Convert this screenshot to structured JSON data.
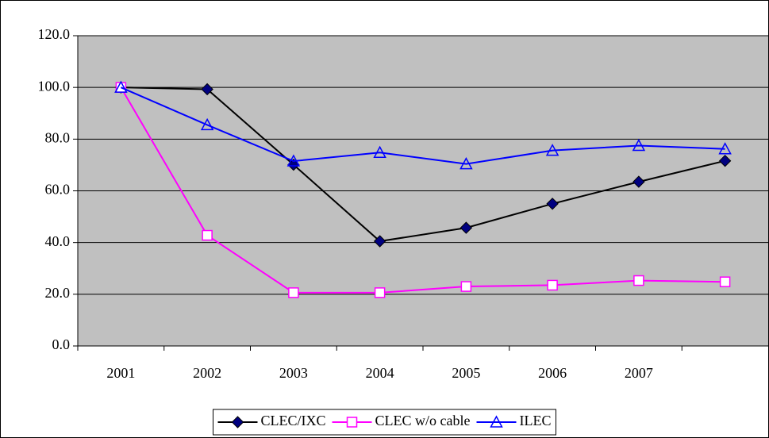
{
  "chart_data": {
    "type": "line",
    "categories": [
      "2001",
      "2002",
      "2003",
      "2004",
      "2005",
      "2006",
      "2007",
      null
    ],
    "series": [
      {
        "name": "CLEC/IXC",
        "color": "#000000",
        "marker": "diamond",
        "values": [
          100,
          99.3,
          70.1,
          40.5,
          45.7,
          55,
          63.5,
          71.6
        ]
      },
      {
        "name": "CLEC w/o cable",
        "color": "#ff00ff",
        "marker": "square",
        "values": [
          100,
          42.8,
          20.6,
          20.6,
          23,
          23.5,
          25.3,
          24.8
        ]
      },
      {
        "name": "ILEC",
        "color": "#0000ff",
        "marker": "triangle",
        "values": [
          100,
          85.5,
          71.5,
          74.8,
          70.4,
          75.6,
          77.5,
          76.2
        ]
      }
    ],
    "ylim": [
      0,
      120
    ],
    "yticks": [
      {
        "value": 0,
        "label": "0.0"
      },
      {
        "value": 20,
        "label": "20.0"
      },
      {
        "value": 40,
        "label": "40.0"
      },
      {
        "value": 60,
        "label": "60.0"
      },
      {
        "value": 80,
        "label": "80.0"
      },
      {
        "value": 100,
        "label": "100.0"
      },
      {
        "value": 120,
        "label": "120.0"
      }
    ],
    "grid": true,
    "plot_background": "#c0c0c0",
    "legend": "bottom"
  }
}
